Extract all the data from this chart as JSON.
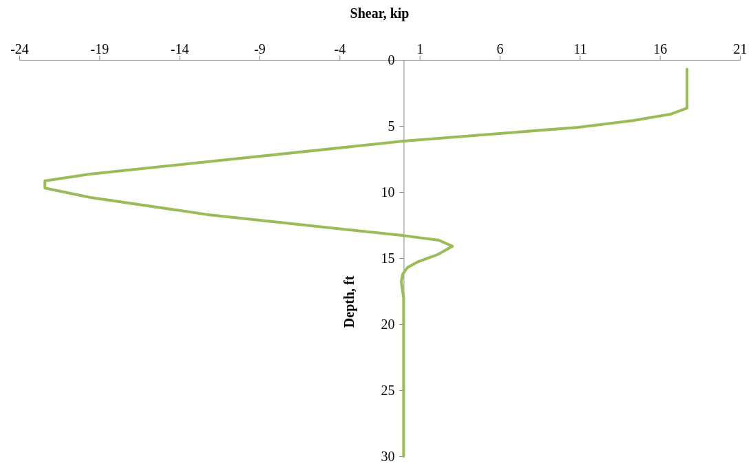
{
  "chart_data": {
    "type": "line",
    "xlabel": "Shear, kip",
    "ylabel": "Depth, ft",
    "x": [
      17.7,
      17.7,
      16.7,
      14.3,
      10.9,
      0,
      -19.6,
      -22.4,
      -22.4,
      -19.6,
      -12.3,
      0,
      2.2,
      3.05,
      2.1,
      0.95,
      0.25,
      -0.05,
      -0.15,
      0,
      0
    ],
    "series": [
      {
        "color": "#9bbb59",
        "values": [
          0.7,
          3.65,
          4.1,
          4.6,
          5.1,
          6.15,
          8.65,
          9.15,
          9.7,
          10.4,
          11.7,
          13.3,
          13.65,
          14.1,
          14.75,
          15.25,
          15.7,
          16.2,
          16.8,
          18,
          30
        ]
      }
    ],
    "xlim": [
      -24,
      21
    ],
    "xticks": [
      -24,
      -19,
      -14,
      -9,
      -4,
      1,
      6,
      11,
      16,
      21
    ],
    "ylim": [
      30,
      0
    ],
    "yticks": [
      0,
      5,
      10,
      15,
      20,
      25,
      30
    ]
  }
}
